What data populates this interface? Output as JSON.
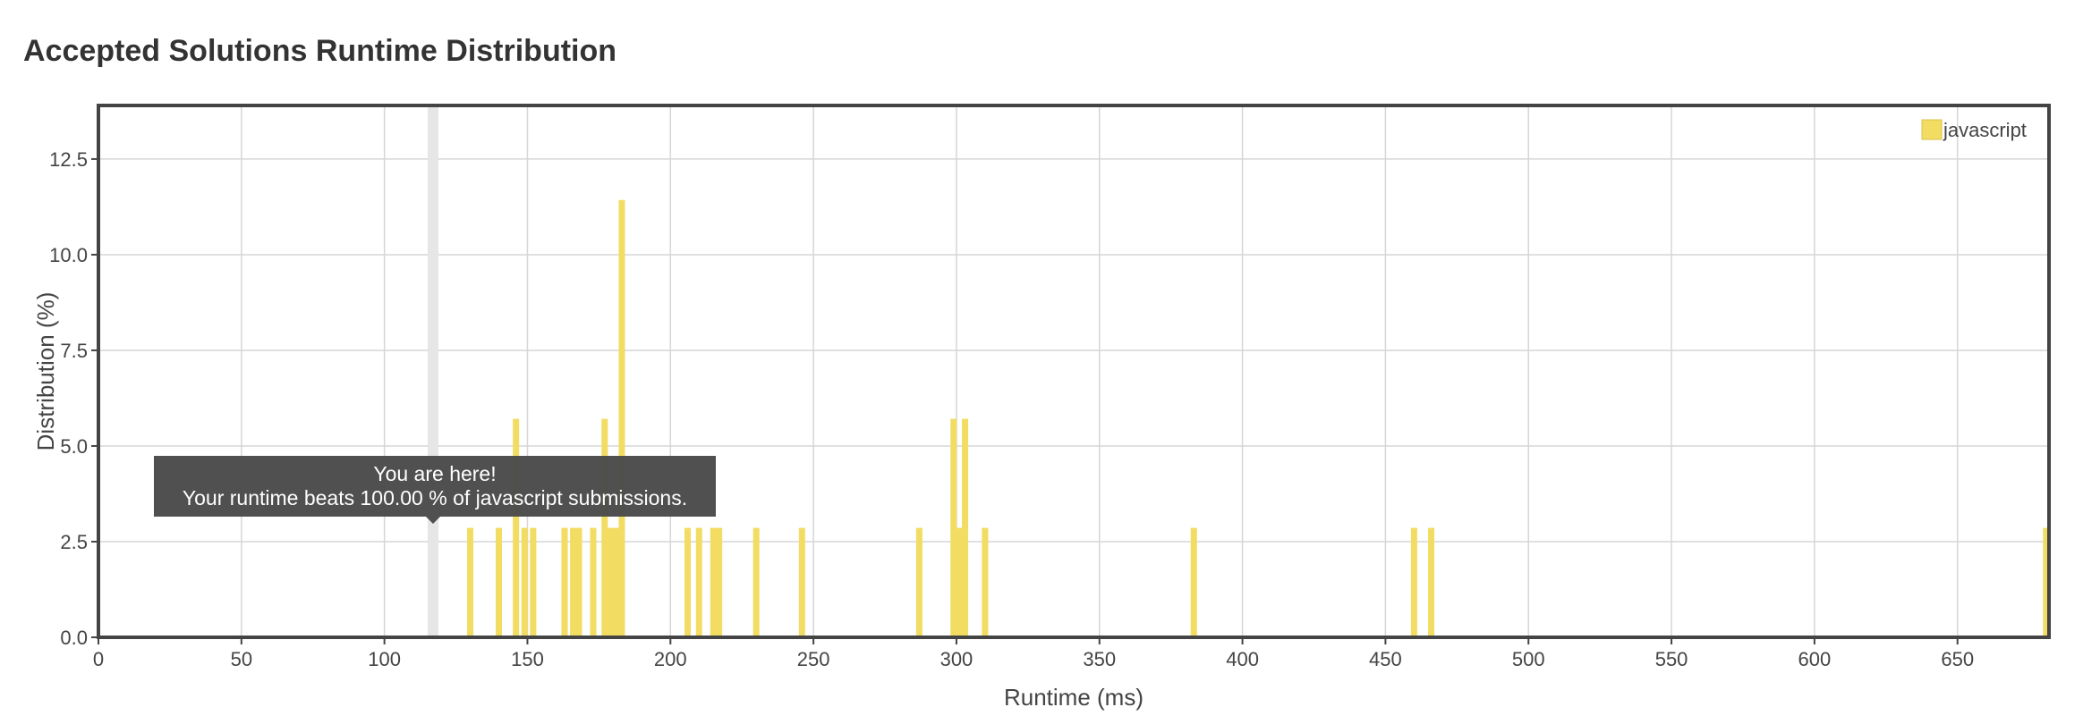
{
  "page": {
    "title": "Accepted Solutions Runtime Distribution"
  },
  "chart_data": {
    "type": "bar",
    "title": "Accepted Solutions Runtime Distribution",
    "xlabel": "Runtime (ms)",
    "ylabel": "Distribution (%)",
    "xlim": [
      0,
      682
    ],
    "ylim": [
      0,
      13.9
    ],
    "xticks": [
      0,
      50,
      100,
      150,
      200,
      250,
      300,
      350,
      400,
      450,
      500,
      550,
      600,
      650
    ],
    "yticks": [
      "0.0",
      "2.5",
      "5.0",
      "7.5",
      "10.0",
      "12.5"
    ],
    "grid": true,
    "legend": {
      "position": "top-right",
      "entries": [
        "javascript"
      ]
    },
    "series": [
      {
        "name": "javascript",
        "color": "#f2dc62",
        "points": [
          {
            "x": 130,
            "y": 2.86
          },
          {
            "x": 140,
            "y": 2.86
          },
          {
            "x": 146,
            "y": 5.71
          },
          {
            "x": 149,
            "y": 2.86
          },
          {
            "x": 152,
            "y": 2.86
          },
          {
            "x": 163,
            "y": 2.86
          },
          {
            "x": 166,
            "y": 2.86
          },
          {
            "x": 168,
            "y": 2.86
          },
          {
            "x": 173,
            "y": 2.86
          },
          {
            "x": 177,
            "y": 5.71
          },
          {
            "x": 179,
            "y": 2.86
          },
          {
            "x": 181,
            "y": 2.86
          },
          {
            "x": 183,
            "y": 11.43
          },
          {
            "x": 206,
            "y": 2.86
          },
          {
            "x": 210,
            "y": 2.86
          },
          {
            "x": 215,
            "y": 2.86
          },
          {
            "x": 217,
            "y": 2.86
          },
          {
            "x": 230,
            "y": 2.86
          },
          {
            "x": 246,
            "y": 2.86
          },
          {
            "x": 287,
            "y": 2.86
          },
          {
            "x": 299,
            "y": 5.71
          },
          {
            "x": 301,
            "y": 2.86
          },
          {
            "x": 303,
            "y": 5.71
          },
          {
            "x": 310,
            "y": 2.86
          },
          {
            "x": 383,
            "y": 2.86
          },
          {
            "x": 460,
            "y": 2.86
          },
          {
            "x": 466,
            "y": 2.86
          },
          {
            "x": 681,
            "y": 2.86
          }
        ]
      }
    ],
    "highlight": {
      "x": 117,
      "color": "#e6e6e6"
    },
    "tooltip": {
      "line1": "You are here!",
      "line2": "Your runtime beats 100.00 % of javascript submissions."
    }
  }
}
